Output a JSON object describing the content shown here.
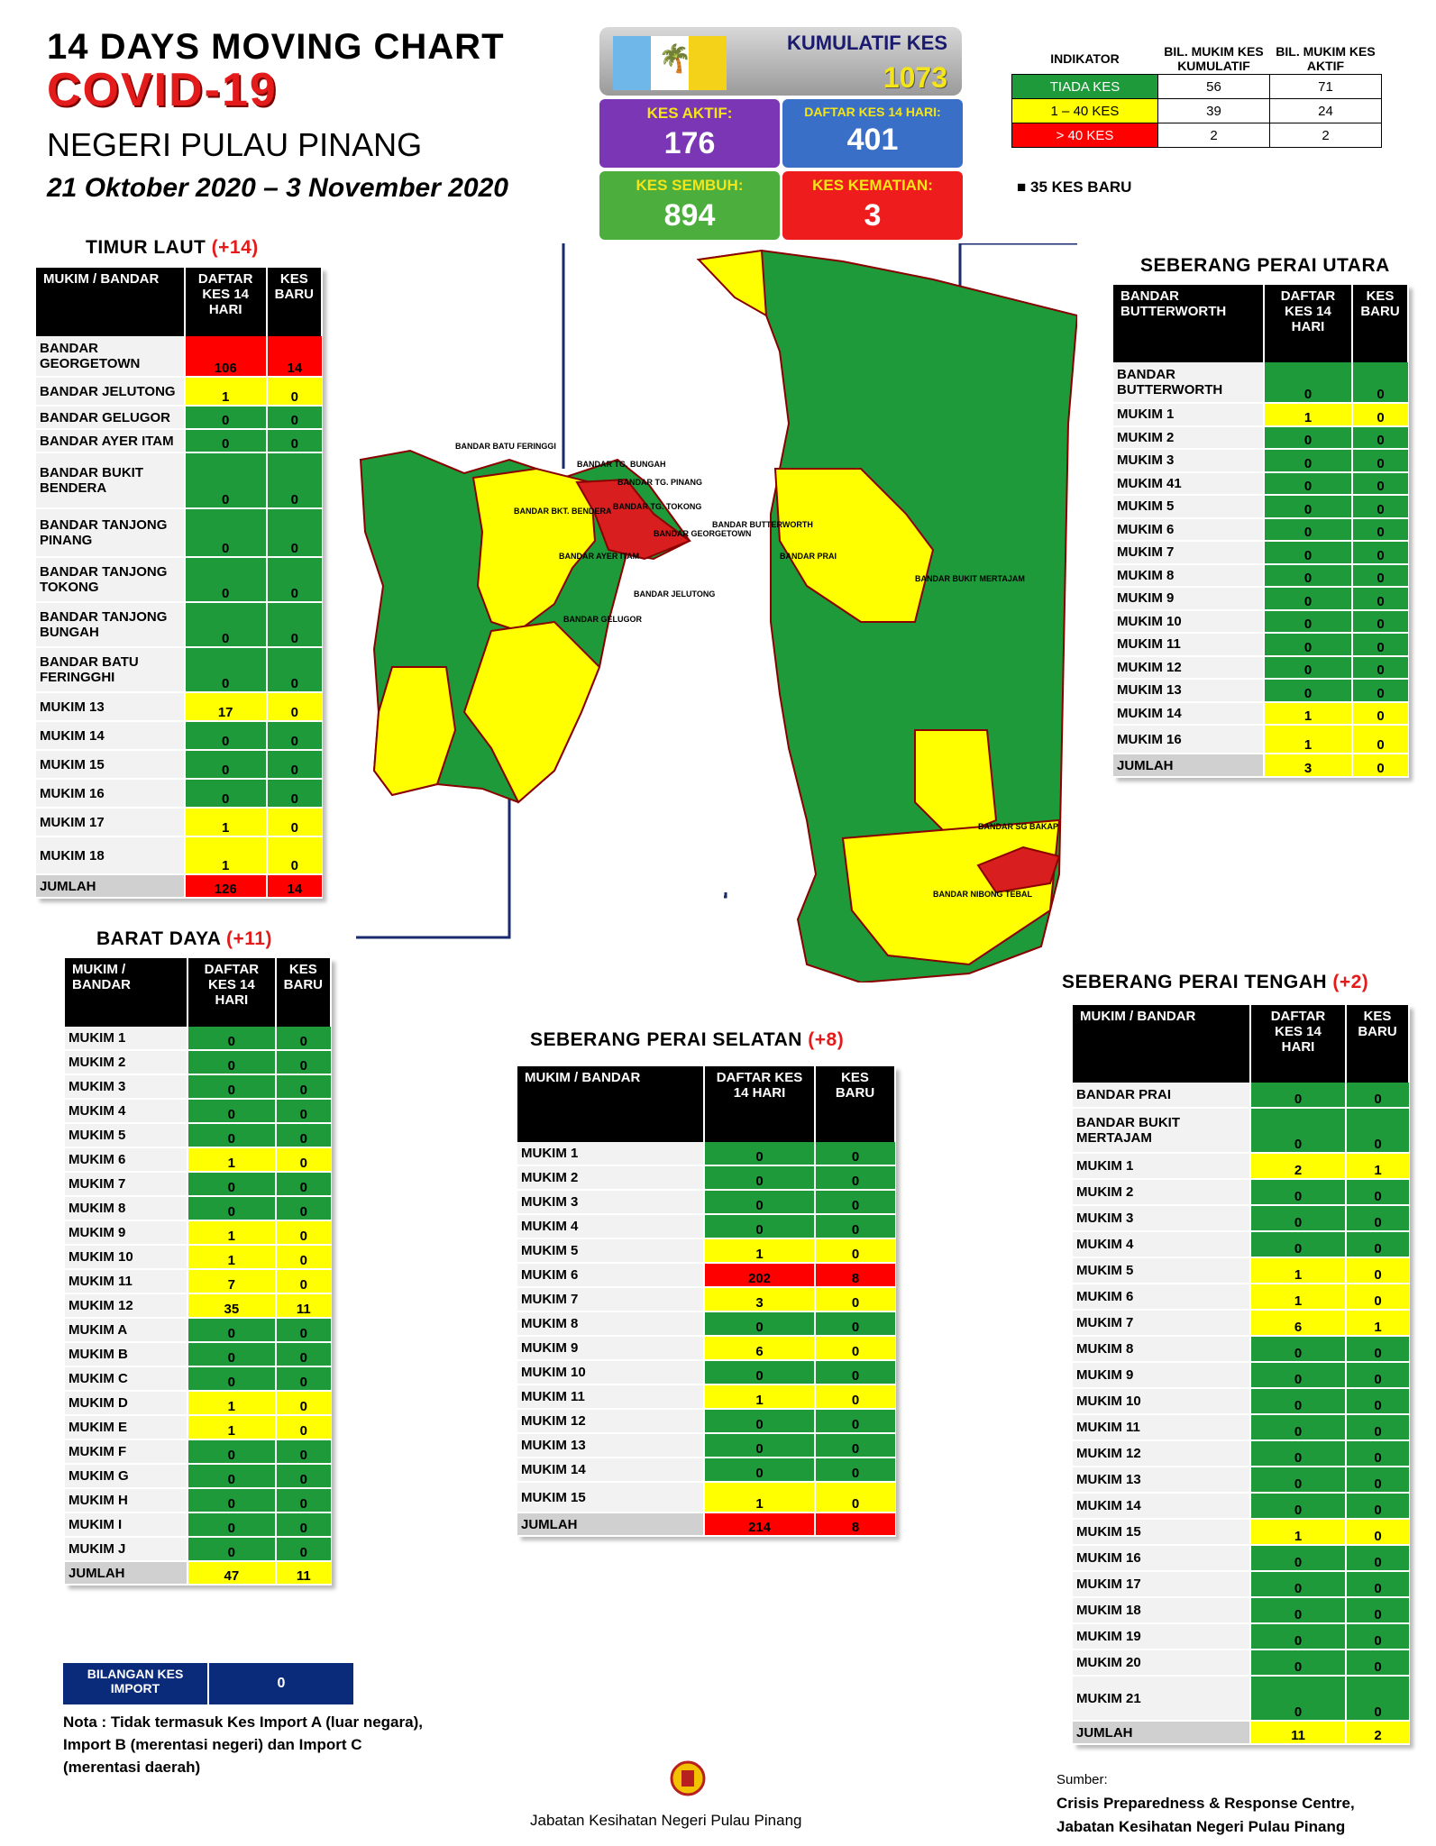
{
  "header": {
    "line1": "14  DAYS MOVING CHART",
    "line2": "COVID-19",
    "line3": "NEGERI PULAU PINANG",
    "line4": "21 Oktober 2020 – 3 November 2020"
  },
  "summary": {
    "kumulatif_label": "KUMULATIF KES",
    "kumulatif_value": "1073",
    "aktif_label": "KES AKTIF:",
    "aktif_value": "176",
    "daftar_label": "DAFTAR KES 14 HARI:",
    "daftar_value": "401",
    "sembuh_label": "KES SEMBUH:",
    "sembuh_value": "894",
    "kematian_label": "KES KEMATIAN:",
    "kematian_value": "3",
    "flag_colors": [
      "#6fb7e8",
      "#ffffff",
      "#f4d21a"
    ]
  },
  "indikator": {
    "col1": "INDIKATOR",
    "col2": "BIL. MUKIM KES KUMULATIF",
    "col3": "BIL. MUKIM KES AKTIF",
    "rows": [
      {
        "label": "TIADA KES",
        "a": "56",
        "b": "71",
        "color": "g"
      },
      {
        "label": "1 – 40 KES",
        "a": "39",
        "b": "24",
        "color": "y"
      },
      {
        "label": "> 40 KES",
        "a": "2",
        "b": "2",
        "color": "r"
      }
    ],
    "new_cases": "35 KES BARU"
  },
  "timur_laut": {
    "title": "TIMUR LAUT",
    "plus": "(+14)",
    "h1": "MUKIM / BANDAR",
    "h2": "DAFTAR KES 14 HARI",
    "h3": "KES BARU",
    "rows": [
      {
        "name": "BANDAR GEORGETOWN",
        "a": "106",
        "b": "14",
        "c": "r",
        "h": 44
      },
      {
        "name": "BANDAR JELUTONG",
        "a": "1",
        "b": "0",
        "c": "y",
        "h": 30
      },
      {
        "name": "BANDAR GELUGOR",
        "a": "0",
        "b": "0",
        "c": "g",
        "h": 24
      },
      {
        "name": "BANDAR AYER ITAM",
        "a": "0",
        "b": "0",
        "c": "g",
        "h": 24
      },
      {
        "name": "BANDAR BUKIT BENDERA",
        "a": "0",
        "b": "0",
        "c": "g",
        "h": 60
      },
      {
        "name": "BANDAR TANJONG PINANG",
        "a": "0",
        "b": "0",
        "c": "g",
        "h": 52
      },
      {
        "name": "BANDAR TANJONG TOKONG",
        "a": "0",
        "b": "0",
        "c": "g",
        "h": 48
      },
      {
        "name": "BANDAR TANJONG BUNGAH",
        "a": "0",
        "b": "0",
        "c": "g",
        "h": 48
      },
      {
        "name": "BANDAR BATU FERINGGHI",
        "a": "0",
        "b": "0",
        "c": "g",
        "h": 48
      },
      {
        "name": "MUKIM 13",
        "a": "17",
        "b": "0",
        "c": "y",
        "h": 30
      },
      {
        "name": "MUKIM 14",
        "a": "0",
        "b": "0",
        "c": "g",
        "h": 30
      },
      {
        "name": "MUKIM 15",
        "a": "0",
        "b": "0",
        "c": "g",
        "h": 30
      },
      {
        "name": "MUKIM 16",
        "a": "0",
        "b": "0",
        "c": "g",
        "h": 30
      },
      {
        "name": "MUKIM 17",
        "a": "1",
        "b": "0",
        "c": "y",
        "h": 30
      },
      {
        "name": "MUKIM 18",
        "a": "1",
        "b": "0",
        "c": "y",
        "h": 40
      }
    ],
    "total": {
      "name": "JUMLAH",
      "a": "126",
      "b": "14",
      "c": "r"
    }
  },
  "barat_daya": {
    "title": "BARAT DAYA",
    "plus": "(+11)",
    "h1": "MUKIM / BANDAR",
    "h2": "DAFTAR KES 14 HARI",
    "h3": "KES BARU",
    "rows": [
      {
        "name": "MUKIM 1",
        "a": "0",
        "b": "0",
        "c": "g"
      },
      {
        "name": "MUKIM 2",
        "a": "0",
        "b": "0",
        "c": "g"
      },
      {
        "name": "MUKIM 3",
        "a": "0",
        "b": "0",
        "c": "g"
      },
      {
        "name": "MUKIM 4",
        "a": "0",
        "b": "0",
        "c": "g"
      },
      {
        "name": "MUKIM 5",
        "a": "0",
        "b": "0",
        "c": "g"
      },
      {
        "name": "MUKIM 6",
        "a": "1",
        "b": "0",
        "c": "y"
      },
      {
        "name": "MUKIM 7",
        "a": "0",
        "b": "0",
        "c": "g"
      },
      {
        "name": "MUKIM 8",
        "a": "0",
        "b": "0",
        "c": "g"
      },
      {
        "name": "MUKIM 9",
        "a": "1",
        "b": "0",
        "c": "y"
      },
      {
        "name": "MUKIM 10",
        "a": "1",
        "b": "0",
        "c": "y"
      },
      {
        "name": "MUKIM 11",
        "a": "7",
        "b": "0",
        "c": "y"
      },
      {
        "name": "MUKIM 12",
        "a": "35",
        "b": "11",
        "c": "y"
      },
      {
        "name": "MUKIM A",
        "a": "0",
        "b": "0",
        "c": "g"
      },
      {
        "name": "MUKIM B",
        "a": "0",
        "b": "0",
        "c": "g"
      },
      {
        "name": "MUKIM C",
        "a": "0",
        "b": "0",
        "c": "g"
      },
      {
        "name": "MUKIM D",
        "a": "1",
        "b": "0",
        "c": "y"
      },
      {
        "name": "MUKIM E",
        "a": "1",
        "b": "0",
        "c": "y"
      },
      {
        "name": "MUKIM F",
        "a": "0",
        "b": "0",
        "c": "g"
      },
      {
        "name": "MUKIM G",
        "a": "0",
        "b": "0",
        "c": "g"
      },
      {
        "name": "MUKIM H",
        "a": "0",
        "b": "0",
        "c": "g"
      },
      {
        "name": "MUKIM I",
        "a": "0",
        "b": "0",
        "c": "g"
      },
      {
        "name": "MUKIM J",
        "a": "0",
        "b": "0",
        "c": "g"
      }
    ],
    "total": {
      "name": "JUMLAH",
      "a": "47",
      "b": "11",
      "c": "y"
    }
  },
  "spu": {
    "title": "SEBERANG PERAI UTARA",
    "h1": "BANDAR BUTTERWORTH",
    "h2": "DAFTAR KES 14 HARI",
    "h3": "KES BARU",
    "rows": [
      {
        "name": "BANDAR BUTTERWORTH",
        "a": "0",
        "b": "0",
        "c": "g",
        "h": 44
      },
      {
        "name": "MUKIM 1",
        "a": "1",
        "b": "0",
        "c": "y"
      },
      {
        "name": "MUKIM 2",
        "a": "0",
        "b": "0",
        "c": "g"
      },
      {
        "name": "MUKIM 3",
        "a": "0",
        "b": "0",
        "c": "g"
      },
      {
        "name": "MUKIM 41",
        "a": "0",
        "b": "0",
        "c": "g"
      },
      {
        "name": "MUKIM 5",
        "a": "0",
        "b": "0",
        "c": "g"
      },
      {
        "name": "MUKIM 6",
        "a": "0",
        "b": "0",
        "c": "g"
      },
      {
        "name": "MUKIM 7",
        "a": "0",
        "b": "0",
        "c": "g"
      },
      {
        "name": "MUKIM 8",
        "a": "0",
        "b": "0",
        "c": "g"
      },
      {
        "name": "MUKIM 9",
        "a": "0",
        "b": "0",
        "c": "g"
      },
      {
        "name": "MUKIM 10",
        "a": "0",
        "b": "0",
        "c": "g"
      },
      {
        "name": "MUKIM 11",
        "a": "0",
        "b": "0",
        "c": "g"
      },
      {
        "name": "MUKIM 12",
        "a": "0",
        "b": "0",
        "c": "g"
      },
      {
        "name": "MUKIM 13",
        "a": "0",
        "b": "0",
        "c": "g"
      },
      {
        "name": "MUKIM 14",
        "a": "1",
        "b": "0",
        "c": "y"
      },
      {
        "name": "MUKIM 16",
        "a": "1",
        "b": "0",
        "c": "y",
        "h": 30
      }
    ],
    "total": {
      "name": "JUMLAH",
      "a": "3",
      "b": "0",
      "c": "y"
    }
  },
  "sps": {
    "title": "SEBERANG PERAI SELATAN",
    "plus": "(+8)",
    "h1": "MUKIM / BANDAR",
    "h2": "DAFTAR KES 14 HARI",
    "h3": "KES BARU",
    "rows": [
      {
        "name": "MUKIM 1",
        "a": "0",
        "b": "0",
        "c": "g"
      },
      {
        "name": "MUKIM 2",
        "a": "0",
        "b": "0",
        "c": "g"
      },
      {
        "name": "MUKIM 3",
        "a": "0",
        "b": "0",
        "c": "g"
      },
      {
        "name": "MUKIM 4",
        "a": "0",
        "b": "0",
        "c": "g"
      },
      {
        "name": "MUKIM 5",
        "a": "1",
        "b": "0",
        "c": "y"
      },
      {
        "name": "MUKIM 6",
        "a": "202",
        "b": "8",
        "c": "r"
      },
      {
        "name": "MUKIM 7",
        "a": "3",
        "b": "0",
        "c": "y"
      },
      {
        "name": "MUKIM 8",
        "a": "0",
        "b": "0",
        "c": "g"
      },
      {
        "name": "MUKIM 9",
        "a": "6",
        "b": "0",
        "c": "y"
      },
      {
        "name": "MUKIM 10",
        "a": "0",
        "b": "0",
        "c": "g"
      },
      {
        "name": "MUKIM 11",
        "a": "1",
        "b": "0",
        "c": "y"
      },
      {
        "name": "MUKIM 12",
        "a": "0",
        "b": "0",
        "c": "g"
      },
      {
        "name": "MUKIM 13",
        "a": "0",
        "b": "0",
        "c": "g"
      },
      {
        "name": "MUKIM 14",
        "a": "0",
        "b": "0",
        "c": "g"
      },
      {
        "name": "MUKIM 15",
        "a": "1",
        "b": "0",
        "c": "y",
        "h": 32
      }
    ],
    "total": {
      "name": "JUMLAH",
      "a": "214",
      "b": "8",
      "c": "r"
    }
  },
  "spt": {
    "title": "SEBERANG PERAI TENGAH",
    "plus": "(+2)",
    "h1": "MUKIM / BANDAR",
    "h2": "DAFTAR KES 14 HARI",
    "h3": "KES BARU",
    "rows": [
      {
        "name": "BANDAR PRAI",
        "a": "0",
        "b": "0",
        "c": "g"
      },
      {
        "name": "BANDAR BUKIT MERTAJAM",
        "a": "0",
        "b": "0",
        "c": "g",
        "h": 48
      },
      {
        "name": "MUKIM 1",
        "a": "2",
        "b": "1",
        "c": "y"
      },
      {
        "name": "MUKIM 2",
        "a": "0",
        "b": "0",
        "c": "g"
      },
      {
        "name": "MUKIM 3",
        "a": "0",
        "b": "0",
        "c": "g"
      },
      {
        "name": "MUKIM 4",
        "a": "0",
        "b": "0",
        "c": "g"
      },
      {
        "name": "MUKIM 5",
        "a": "1",
        "b": "0",
        "c": "y"
      },
      {
        "name": "MUKIM 6",
        "a": "1",
        "b": "0",
        "c": "y"
      },
      {
        "name": "MUKIM 7",
        "a": "6",
        "b": "1",
        "c": "y"
      },
      {
        "name": "MUKIM 8",
        "a": "0",
        "b": "0",
        "c": "g"
      },
      {
        "name": "MUKIM 9",
        "a": "0",
        "b": "0",
        "c": "g"
      },
      {
        "name": "MUKIM 10",
        "a": "0",
        "b": "0",
        "c": "g"
      },
      {
        "name": "MUKIM 11",
        "a": "0",
        "b": "0",
        "c": "g"
      },
      {
        "name": "MUKIM 12",
        "a": "0",
        "b": "0",
        "c": "g"
      },
      {
        "name": "MUKIM 13",
        "a": "0",
        "b": "0",
        "c": "g"
      },
      {
        "name": "MUKIM 14",
        "a": "0",
        "b": "0",
        "c": "g"
      },
      {
        "name": "MUKIM 15",
        "a": "1",
        "b": "0",
        "c": "y"
      },
      {
        "name": "MUKIM 16",
        "a": "0",
        "b": "0",
        "c": "g"
      },
      {
        "name": "MUKIM 17",
        "a": "0",
        "b": "0",
        "c": "g"
      },
      {
        "name": "MUKIM 18",
        "a": "0",
        "b": "0",
        "c": "g"
      },
      {
        "name": "MUKIM 19",
        "a": "0",
        "b": "0",
        "c": "g"
      },
      {
        "name": "MUKIM 20",
        "a": "0",
        "b": "0",
        "c": "g"
      },
      {
        "name": "MUKIM 21",
        "a": "0",
        "b": "0",
        "c": "g",
        "h": 48
      }
    ],
    "total": {
      "name": "JUMLAH",
      "a": "11",
      "b": "2",
      "c": "y"
    }
  },
  "map_labels": {
    "island": [
      "BANDAR BATU FERINGGI",
      "BANDAR TG. BUNGAH",
      "BANDAR TG. PINANG",
      "BANDAR TG. TOKONG",
      "BANDAR BKT. BENDERA",
      "BANDAR AYER ITAM",
      "BANDAR JELUTONG",
      "BANDAR GELUGOR",
      "BANDAR GEORGETOWN"
    ],
    "mainland": [
      "BANDAR BUTTERWORTH",
      "BANDAR PRAI",
      "BANDAR BUKIT MERTAJAM",
      "BANDAR SG BAKAP",
      "BANDAR NIBONG TEBAL"
    ]
  },
  "import_box": {
    "label": "BILANGAN KES IMPORT",
    "value": "0"
  },
  "note": "Nota : Tidak termasuk Kes Import A (luar negara), Import B (merentasi negeri) dan Import C (merentasi daerah)",
  "footer": "Jabatan Kesihatan Negeri Pulau Pinang",
  "source": {
    "label": "Sumber:",
    "line1": "Crisis Preparedness & Response Centre,",
    "line2": "Jabatan Kesihatan Negeri Pulau Pinang"
  }
}
